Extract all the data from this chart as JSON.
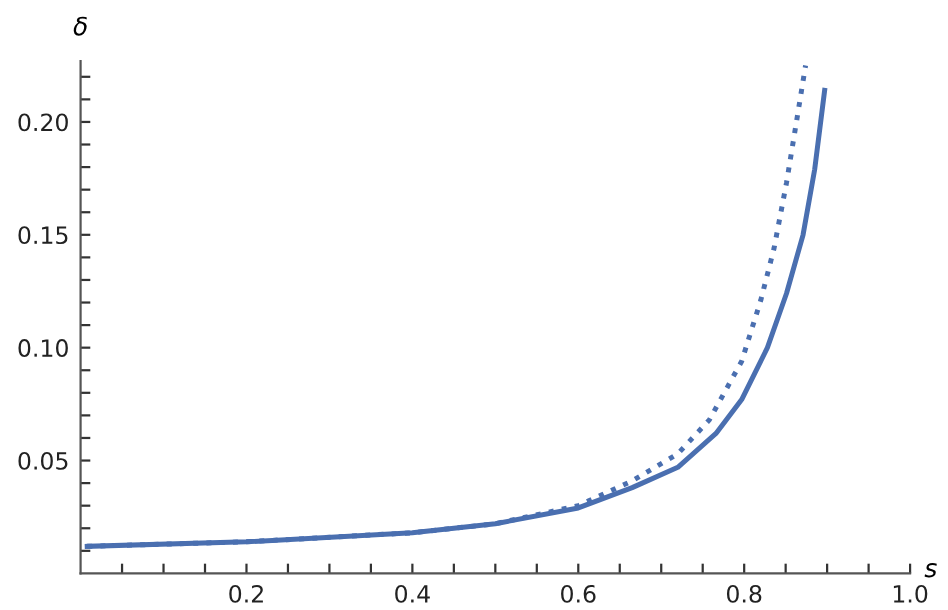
{
  "chart_data": {
    "type": "line",
    "xlabel": "s",
    "ylabel": "δ",
    "xlim": [
      0,
      1.0
    ],
    "ylim": [
      0,
      0.227
    ],
    "xticks": [
      {
        "value": 0.05,
        "label": null
      },
      {
        "value": 0.1,
        "label": null
      },
      {
        "value": 0.15,
        "label": null
      },
      0.2,
      {
        "value": 0.25,
        "label": null
      },
      {
        "value": 0.3,
        "label": null
      },
      {
        "value": 0.35,
        "label": null
      },
      0.4,
      {
        "value": 0.45,
        "label": null
      },
      {
        "value": 0.5,
        "label": null
      },
      {
        "value": 0.55,
        "label": null
      },
      0.6,
      {
        "value": 0.65,
        "label": null
      },
      {
        "value": 0.7,
        "label": null
      },
      {
        "value": 0.75,
        "label": null
      },
      0.8,
      {
        "value": 0.85,
        "label": null
      },
      {
        "value": 0.9,
        "label": null
      },
      {
        "value": 0.95,
        "label": null
      },
      {
        "value": 1.0,
        "label": "1.0"
      }
    ],
    "yticks": [
      {
        "value": 0.01,
        "label": null
      },
      {
        "value": 0.02,
        "label": null
      },
      {
        "value": 0.03,
        "label": null
      },
      {
        "value": 0.04,
        "label": null
      },
      0.05,
      {
        "value": 0.06,
        "label": null
      },
      {
        "value": 0.07,
        "label": null
      },
      {
        "value": 0.08,
        "label": null
      },
      {
        "value": 0.09,
        "label": null
      },
      {
        "value": 0.1,
        "label": "0.10"
      },
      {
        "value": 0.11,
        "label": null
      },
      {
        "value": 0.12,
        "label": null
      },
      {
        "value": 0.13,
        "label": null
      },
      {
        "value": 0.14,
        "label": null
      },
      0.15,
      {
        "value": 0.16,
        "label": null
      },
      {
        "value": 0.17,
        "label": null
      },
      {
        "value": 0.18,
        "label": null
      },
      {
        "value": 0.19,
        "label": null
      },
      {
        "value": 0.2,
        "label": "0.20"
      },
      {
        "value": 0.21,
        "label": null
      },
      {
        "value": 0.22,
        "label": null
      }
    ],
    "grid": false,
    "series": [
      {
        "color": "#4a6fb0",
        "line_style": "solid",
        "x": [
          0.008,
          0.2,
          0.4,
          0.5,
          0.6,
          0.665,
          0.72,
          0.766,
          0.797,
          0.828,
          0.851,
          0.871,
          0.885,
          0.897
        ],
        "values": [
          0.012,
          0.014,
          0.018,
          0.022,
          0.029,
          0.038,
          0.047,
          0.062,
          0.077,
          0.1,
          0.124,
          0.15,
          0.179,
          0.214
        ]
      },
      {
        "color": "#4a6fb0",
        "line_style": "dotted",
        "x": [
          0.008,
          0.2,
          0.4,
          0.5,
          0.6,
          0.665,
          0.72,
          0.758,
          0.797,
          0.82,
          0.836,
          0.851,
          0.863,
          0.874
        ],
        "values": [
          0.012,
          0.014,
          0.018,
          0.022,
          0.03,
          0.041,
          0.053,
          0.068,
          0.094,
          0.121,
          0.144,
          0.173,
          0.2,
          0.225
        ]
      }
    ]
  }
}
